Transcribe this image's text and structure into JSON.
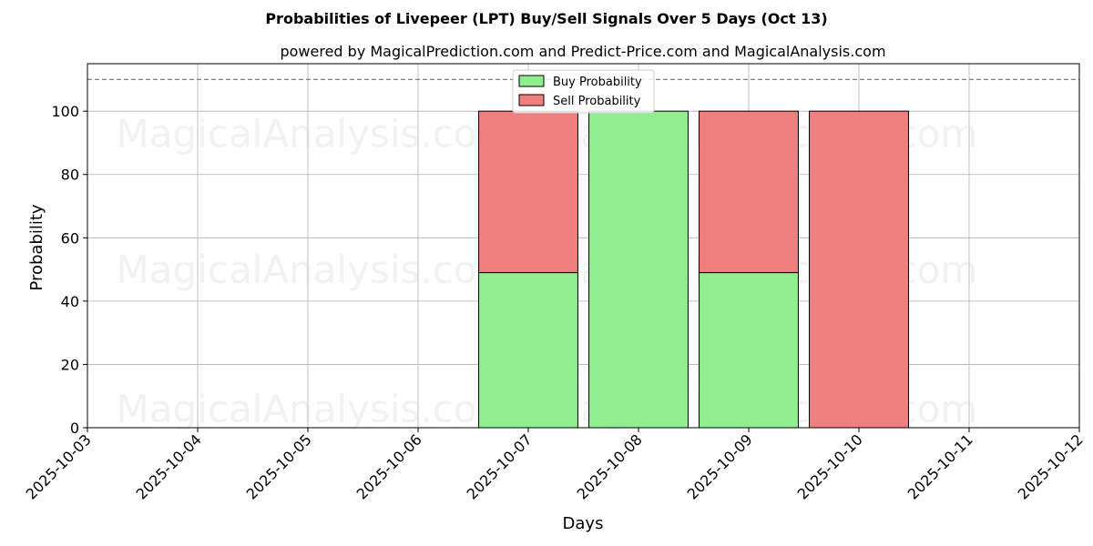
{
  "chart_data": {
    "type": "bar",
    "stacked": true,
    "title": "Probabilities of Livepeer (LPT) Buy/Sell Signals Over 5 Days (Oct 13)",
    "subtitle": "powered by MagicalPrediction.com and Predict-Price.com and MagicalAnalysis.com",
    "xlabel": "Days",
    "ylabel": "Probability",
    "x_ticks": [
      "2025-10-03",
      "2025-10-04",
      "2025-10-05",
      "2025-10-06",
      "2025-10-07",
      "2025-10-08",
      "2025-10-09",
      "2025-10-10",
      "2025-10-11",
      "2025-10-12"
    ],
    "categories": [
      "2025-10-07",
      "2025-10-08",
      "2025-10-09",
      "2025-10-10"
    ],
    "series": [
      {
        "name": "Buy Probability",
        "color": "#90ee90",
        "values": [
          49,
          100,
          49,
          0
        ]
      },
      {
        "name": "Sell Probability",
        "color": "#f08080",
        "values": [
          51,
          0,
          51,
          100
        ]
      }
    ],
    "ylim": [
      0,
      115
    ],
    "y_ticks": [
      0,
      20,
      40,
      60,
      80,
      100
    ],
    "reference_line": 110,
    "grid": true,
    "legend_position": "top-center",
    "watermarks": [
      "MagicalAnalysis.com",
      "MagicalPrediction.com",
      "MagicalAnalysis.com",
      "MagicalPrediction.com",
      "MagicalAnalysis.com",
      "MagicalPrediction.com"
    ]
  }
}
